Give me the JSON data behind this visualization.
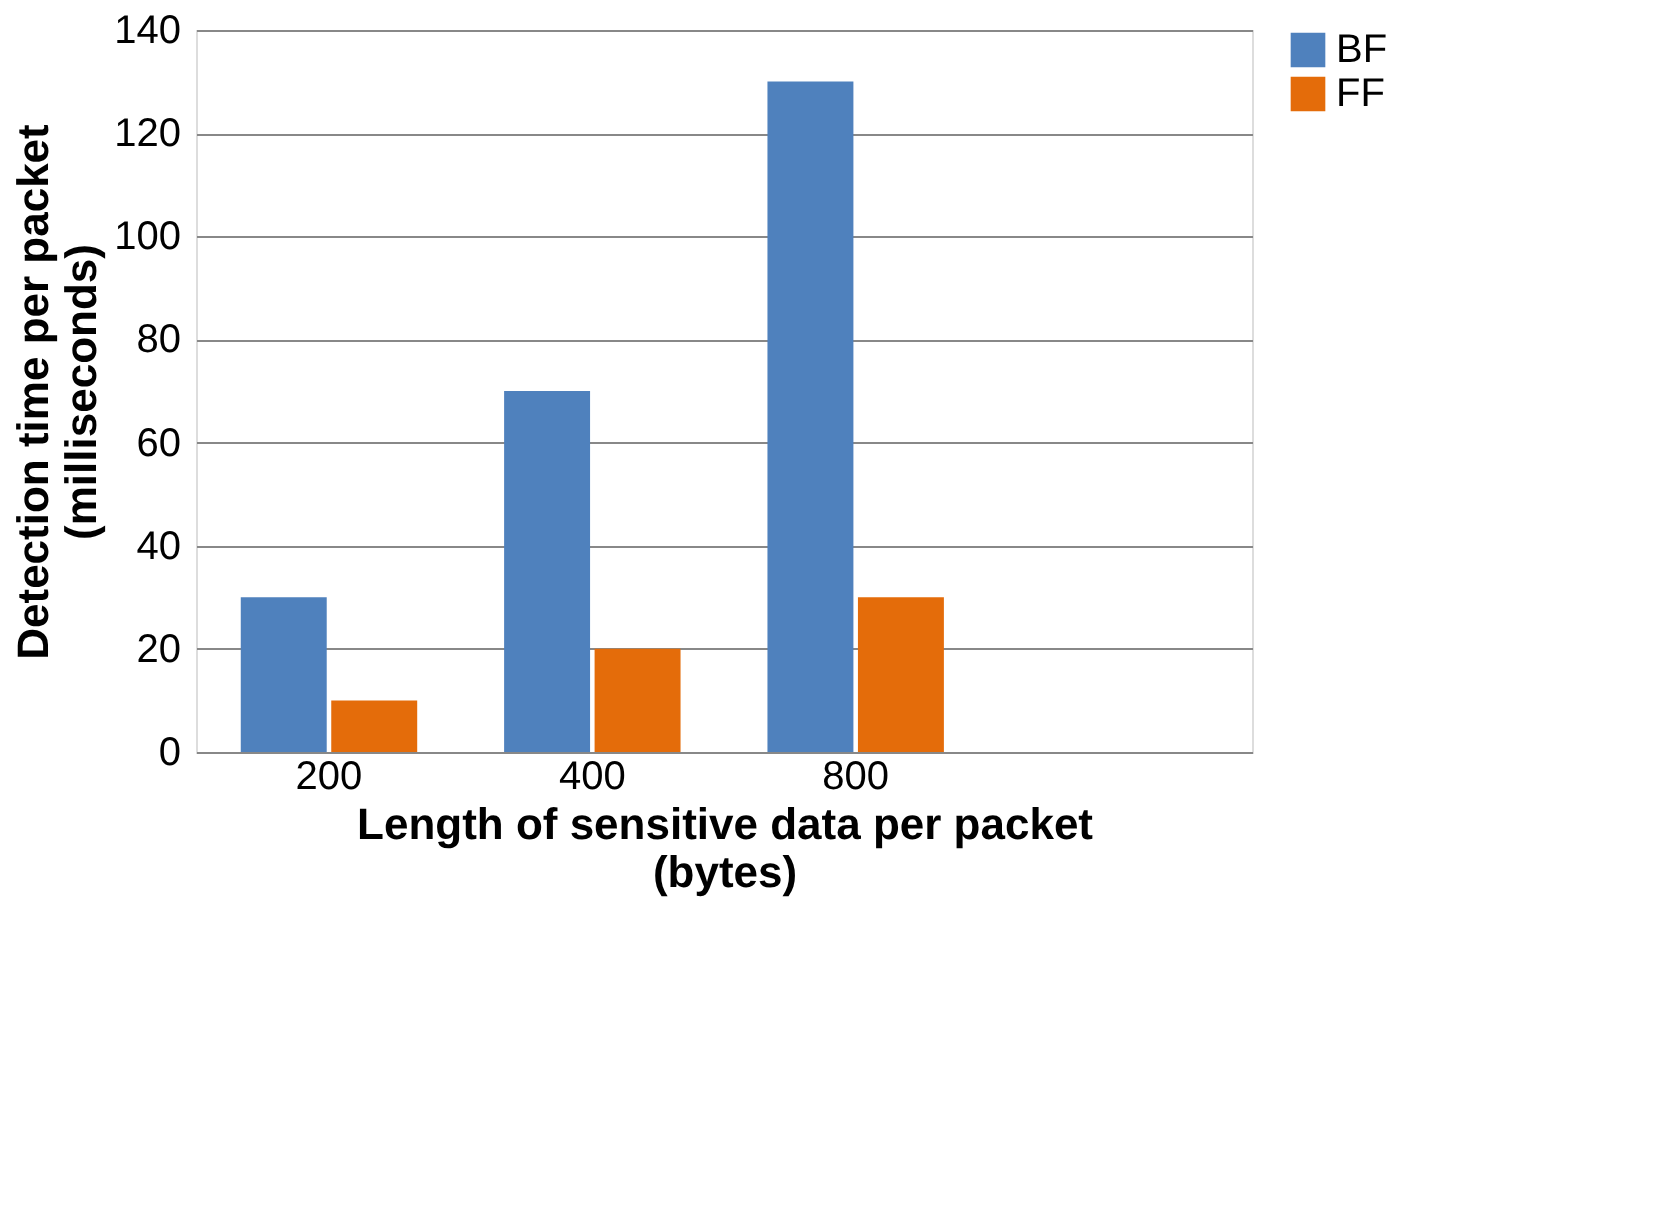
{
  "chart_data": {
    "type": "bar",
    "xlabel": "Length of sensitive data per packet\n(bytes)",
    "ylabel": "Detection time per packet\n(milliseconds)",
    "categories": [
      "200",
      "400",
      "800",
      null
    ],
    "series": [
      {
        "name": "BF",
        "color": "#4f81bd",
        "values": [
          30,
          70,
          130,
          null
        ]
      },
      {
        "name": "FF",
        "color": "#e46c0a",
        "values": [
          10,
          20,
          30,
          null
        ]
      }
    ],
    "ylim": [
      0,
      140
    ],
    "yticks": [
      0,
      20,
      40,
      60,
      80,
      100,
      120,
      140
    ],
    "grid": "y",
    "legend": "right"
  }
}
